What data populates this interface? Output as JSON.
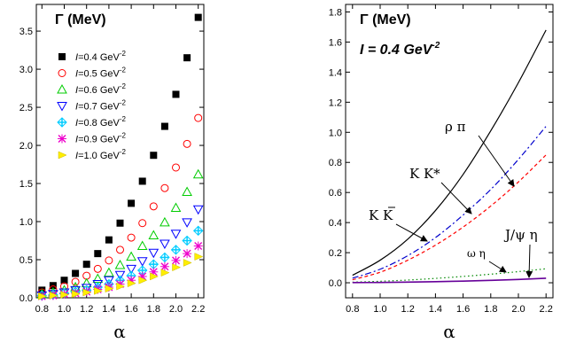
{
  "chart_data": [
    {
      "type": "scatter",
      "title": "Γ (MeV)",
      "xlabel": "α",
      "xlim": [
        0.75,
        2.25
      ],
      "ylim": [
        0,
        3.85
      ],
      "xticks": [
        "0.8",
        "1.0",
        "1.2",
        "1.4",
        "1.6",
        "1.8",
        "2.0",
        "2.2"
      ],
      "yticks": [
        "0.0",
        "0.5",
        "1.0",
        "1.5",
        "2.0",
        "2.5",
        "3.0",
        "3.5"
      ],
      "legend_position": "top-left",
      "x": [
        0.8,
        0.9,
        1.0,
        1.1,
        1.2,
        1.3,
        1.4,
        1.5,
        1.6,
        1.7,
        1.8,
        1.9,
        2.0,
        2.1,
        2.2
      ],
      "series": [
        {
          "name": "I=0.4 GeV-2",
          "label": {
            "pre": "I",
            "mid": "=0.4 GeV",
            "sup": "-2"
          },
          "marker": "square-filled",
          "color": "#000000",
          "values": [
            0.1,
            0.16,
            0.23,
            0.32,
            0.44,
            0.58,
            0.76,
            0.98,
            1.24,
            1.53,
            1.87,
            2.25,
            2.67,
            3.15,
            3.68
          ]
        },
        {
          "name": "I=0.5 GeV-2",
          "label": {
            "pre": "I",
            "mid": "=0.5 GeV",
            "sup": "-2"
          },
          "marker": "circle-open",
          "color": "#ff0000",
          "values": [
            0.07,
            0.11,
            0.15,
            0.21,
            0.29,
            0.38,
            0.49,
            0.63,
            0.79,
            0.98,
            1.2,
            1.44,
            1.71,
            2.02,
            2.36
          ]
        },
        {
          "name": "I=0.6 GeV-2",
          "label": {
            "pre": "I",
            "mid": "=0.6 GeV",
            "sup": "-2"
          },
          "marker": "triangle-up-open",
          "color": "#00cc00",
          "values": [
            0.05,
            0.07,
            0.1,
            0.14,
            0.19,
            0.25,
            0.33,
            0.43,
            0.54,
            0.68,
            0.82,
            0.99,
            1.18,
            1.39,
            1.62
          ]
        },
        {
          "name": "I=0.7 GeV-2",
          "label": {
            "pre": "I",
            "mid": "=0.7 GeV",
            "sup": "-2"
          },
          "marker": "triangle-down-open",
          "color": "#0000ff",
          "values": [
            0.03,
            0.05,
            0.07,
            0.1,
            0.13,
            0.18,
            0.23,
            0.3,
            0.38,
            0.48,
            0.59,
            0.71,
            0.84,
            0.99,
            1.16
          ]
        },
        {
          "name": "I=0.8 GeV-2",
          "label": {
            "pre": "I",
            "mid": "=0.8 GeV",
            "sup": "-2"
          },
          "marker": "plus-diamond",
          "color": "#00ccff",
          "values": [
            0.03,
            0.04,
            0.06,
            0.08,
            0.1,
            0.14,
            0.18,
            0.23,
            0.29,
            0.36,
            0.44,
            0.53,
            0.63,
            0.75,
            0.88
          ]
        },
        {
          "name": "I=0.9 GeV-2",
          "label": {
            "pre": "I",
            "mid": "=0.9 GeV",
            "sup": "-2"
          },
          "marker": "star-x",
          "color": "#ee00cc",
          "values": [
            0.02,
            0.03,
            0.05,
            0.06,
            0.08,
            0.11,
            0.14,
            0.18,
            0.23,
            0.28,
            0.34,
            0.41,
            0.49,
            0.58,
            0.68
          ]
        },
        {
          "name": "I=1.0 GeV-2",
          "label": {
            "pre": "I",
            "mid": "=1.0 GeV",
            "sup": "-2"
          },
          "marker": "triangle-right-filled",
          "color": "#ffee00",
          "values": [
            0.02,
            0.03,
            0.04,
            0.05,
            0.07,
            0.09,
            0.12,
            0.15,
            0.19,
            0.23,
            0.28,
            0.33,
            0.4,
            0.46,
            0.54
          ]
        }
      ]
    },
    {
      "type": "line",
      "title": "Γ (MeV)",
      "subtitle": {
        "mid": "I = 0.4 GeV",
        "sup": "-2"
      },
      "xlabel": "α",
      "xlim": [
        0.75,
        2.25
      ],
      "ylim": [
        -0.1,
        1.85
      ],
      "xticks": [
        "0.8",
        "1.0",
        "1.2",
        "1.4",
        "1.6",
        "1.8",
        "2.0",
        "2.2"
      ],
      "yticks": [
        "0.0",
        "0.2",
        "0.4",
        "0.6",
        "0.8",
        "1.0",
        "1.2",
        "1.4",
        "1.6",
        "1.8"
      ],
      "x": [
        0.8,
        1.0,
        1.2,
        1.4,
        1.6,
        1.8,
        2.0,
        2.2
      ],
      "series": [
        {
          "key": "kk",
          "color": "#000000",
          "style": "solid",
          "values": [
            0.05,
            0.15,
            0.29,
            0.48,
            0.72,
            1.01,
            1.33,
            1.68
          ]
        },
        {
          "key": "kkstar",
          "color": "#0000cc",
          "style": "dashdot",
          "values": [
            0.03,
            0.09,
            0.18,
            0.3,
            0.45,
            0.62,
            0.82,
            1.04
          ]
        },
        {
          "key": "rhopi",
          "color": "#ff0000",
          "style": "dash",
          "values": [
            0.02,
            0.07,
            0.15,
            0.25,
            0.37,
            0.51,
            0.67,
            0.85
          ]
        },
        {
          "key": "omegaeta",
          "color": "#008800",
          "style": "dot",
          "values": [
            0.004,
            0.01,
            0.018,
            0.029,
            0.042,
            0.057,
            0.074,
            0.093
          ]
        },
        {
          "key": "jpsieta",
          "color": "#660099",
          "style": "solid",
          "values": [
            0.001,
            0.002,
            0.004,
            0.007,
            0.011,
            0.016,
            0.022,
            0.03
          ]
        }
      ],
      "annotations": {
        "kk": "K K",
        "kkstar": "K K*",
        "rhopi": "ρ π",
        "jpsieta": "J/ψ η",
        "omegaeta": "ω η"
      }
    }
  ]
}
